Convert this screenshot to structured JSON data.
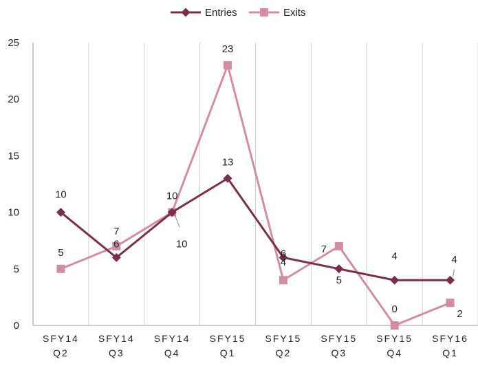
{
  "colors": {
    "entries": "#7b2d4e",
    "exits": "#d48ca6",
    "grid": "#d0d0d0",
    "axis": "#999999"
  },
  "chart_data": {
    "type": "line",
    "categories": [
      [
        "SFY14",
        "Q2"
      ],
      [
        "SFY14",
        "Q3"
      ],
      [
        "SFY14",
        "Q4"
      ],
      [
        "SFY15",
        "Q1"
      ],
      [
        "SFY15",
        "Q2"
      ],
      [
        "SFY15",
        "Q3"
      ],
      [
        "SFY15",
        "Q4"
      ],
      [
        "SFY16",
        "Q1"
      ]
    ],
    "series": [
      {
        "name": "Entries",
        "marker": "diamond",
        "values": [
          10,
          6,
          10,
          13,
          6,
          5,
          4,
          4
        ]
      },
      {
        "name": "Exits",
        "marker": "square",
        "values": [
          5,
          7,
          10,
          23,
          4,
          7,
          0,
          2
        ]
      }
    ],
    "ylim": [
      0,
      25
    ],
    "yticks": [
      0,
      5,
      10,
      15,
      20,
      25
    ],
    "title": "",
    "xlabel": "",
    "ylabel": "",
    "legend": "top-center",
    "grid": "vertical"
  }
}
